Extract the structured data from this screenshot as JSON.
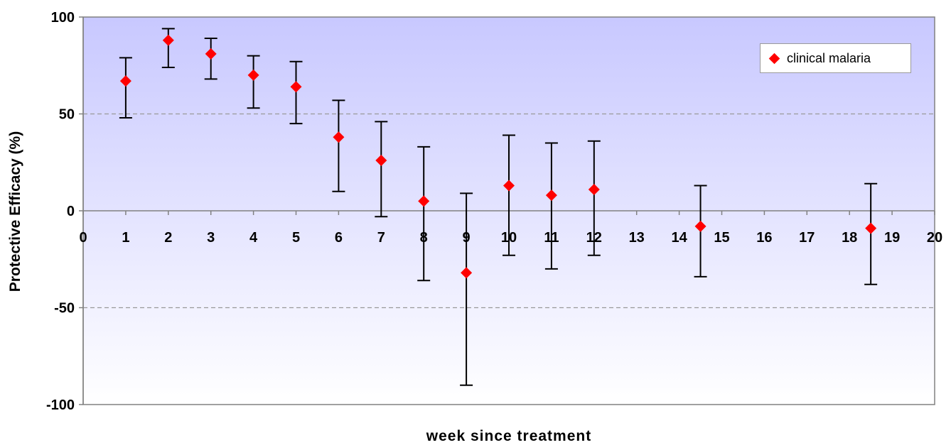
{
  "chart_data": {
    "type": "scatter",
    "title": "",
    "xlabel": "week since treatment",
    "ylabel": "Protective Efficacy (%)",
    "xlim": [
      0,
      20
    ],
    "ylim": [
      -100,
      100
    ],
    "x_ticks": [
      "0",
      "1",
      "2",
      "3",
      "4",
      "5",
      "6",
      "7",
      "8",
      "9",
      "10",
      "11",
      "12",
      "13",
      "14",
      "15",
      "16",
      "17",
      "18",
      "19",
      "20"
    ],
    "y_ticks": [
      "100",
      "50",
      "0",
      "-50",
      "-100"
    ],
    "y_tick_values": [
      100,
      50,
      0,
      -50,
      -100
    ],
    "grid": {
      "horizontal_dashed_at": [
        50,
        -50
      ],
      "zero_line": true
    },
    "legend_position": "top-right",
    "series": [
      {
        "name": "clinical malaria",
        "color": "#ff0000",
        "marker": "diamond",
        "points": [
          {
            "x": 1,
            "y": 67,
            "lower": 48,
            "upper": 79
          },
          {
            "x": 2,
            "y": 88,
            "lower": 74,
            "upper": 94
          },
          {
            "x": 3,
            "y": 81,
            "lower": 68,
            "upper": 89
          },
          {
            "x": 4,
            "y": 70,
            "lower": 53,
            "upper": 80
          },
          {
            "x": 5,
            "y": 64,
            "lower": 45,
            "upper": 77
          },
          {
            "x": 6,
            "y": 38,
            "lower": 10,
            "upper": 57
          },
          {
            "x": 7,
            "y": 26,
            "lower": -3,
            "upper": 46
          },
          {
            "x": 8,
            "y": 5,
            "lower": -36,
            "upper": 33
          },
          {
            "x": 9,
            "y": -32,
            "lower": -90,
            "upper": 9
          },
          {
            "x": 10,
            "y": 13,
            "lower": -23,
            "upper": 39
          },
          {
            "x": 11,
            "y": 8,
            "lower": -30,
            "upper": 35
          },
          {
            "x": 12,
            "y": 11,
            "lower": -23,
            "upper": 36
          },
          {
            "x": 14.5,
            "y": -8,
            "lower": -34,
            "upper": 13
          },
          {
            "x": 18.5,
            "y": -9,
            "lower": -38,
            "upper": 14
          }
        ]
      }
    ],
    "background_gradient": {
      "top": "#c8c8ff",
      "bottom": "#ffffff"
    }
  }
}
